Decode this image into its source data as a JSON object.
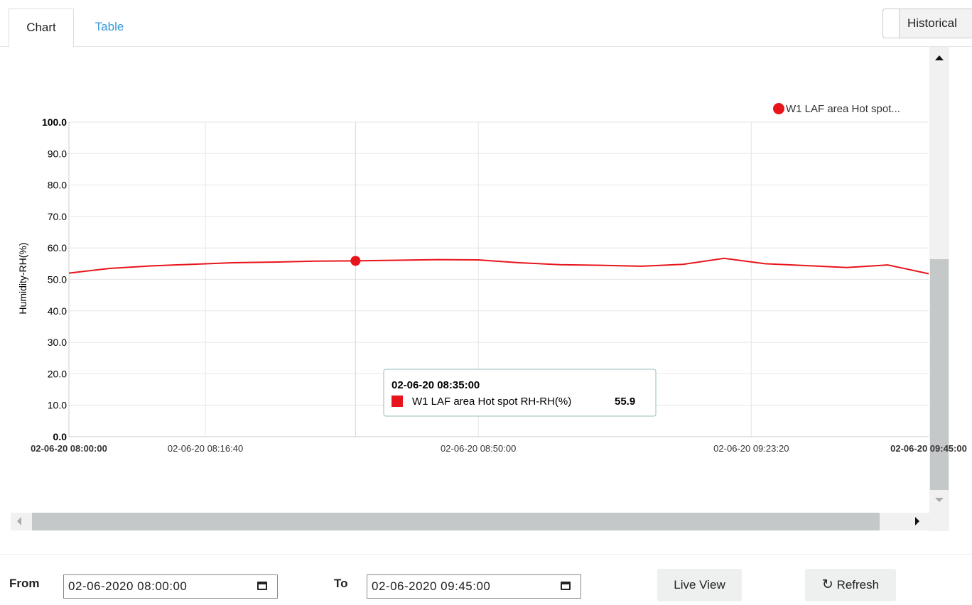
{
  "tabs": {
    "chart": "Chart",
    "table": "Table"
  },
  "mode_button": "Historical",
  "controls": {
    "from_label": "From",
    "from_value": "02-06-2020 08:00:00",
    "to_label": "To",
    "to_value": "02-06-2020 09:45:00",
    "live_view": "Live View",
    "refresh": "Refresh"
  },
  "chart_data": {
    "type": "line",
    "y_label": "Humidity-RH(%)",
    "legend_label": "W1 LAF area Hot spot...",
    "x": [
      "02-06-20 08:00:00",
      "02-06-20 08:05:00",
      "02-06-20 08:10:00",
      "02-06-20 08:15:00",
      "02-06-20 08:20:00",
      "02-06-20 08:25:00",
      "02-06-20 08:30:00",
      "02-06-20 08:35:00",
      "02-06-20 08:40:00",
      "02-06-20 08:45:00",
      "02-06-20 08:50:00",
      "02-06-20 08:55:00",
      "02-06-20 09:00:00",
      "02-06-20 09:05:00",
      "02-06-20 09:10:00",
      "02-06-20 09:15:00",
      "02-06-20 09:20:00",
      "02-06-20 09:25:00",
      "02-06-20 09:30:00",
      "02-06-20 09:35:00",
      "02-06-20 09:40:00",
      "02-06-20 09:45:00"
    ],
    "series": [
      {
        "name": "W1 LAF area Hot spot RH-RH(%)",
        "color": "#e8141b",
        "values": [
          52.0,
          53.5,
          54.3,
          54.8,
          55.3,
          55.5,
          55.8,
          55.9,
          56.1,
          56.3,
          56.2,
          55.3,
          54.7,
          54.5,
          54.2,
          54.8,
          56.7,
          55.0,
          54.4,
          53.8,
          54.6,
          51.8
        ]
      }
    ],
    "xlim": [
      "02-06-20 08:00:00",
      "02-06-20 09:45:00"
    ],
    "xticks": [
      "02-06-20 08:00:00",
      "02-06-20 08:16:40",
      "02-06-20 08:50:00",
      "02-06-20 09:23:20",
      "02-06-20 09:45:00"
    ],
    "ylim": [
      0,
      100
    ],
    "yticks": [
      {
        "value": 0,
        "label": "0.0"
      },
      {
        "value": 10,
        "label": "10.0"
      },
      {
        "value": 20,
        "label": "20.0"
      },
      {
        "value": 30,
        "label": "30.0"
      },
      {
        "value": 40,
        "label": "40.0"
      },
      {
        "value": 50,
        "label": "50.0"
      },
      {
        "value": 60,
        "label": "60.0"
      },
      {
        "value": 70,
        "label": "70.0"
      },
      {
        "value": 80,
        "label": "80.0"
      },
      {
        "value": 90,
        "label": "90.0"
      },
      {
        "value": 100,
        "label": "100.0"
      }
    ],
    "grid": true
  }
}
